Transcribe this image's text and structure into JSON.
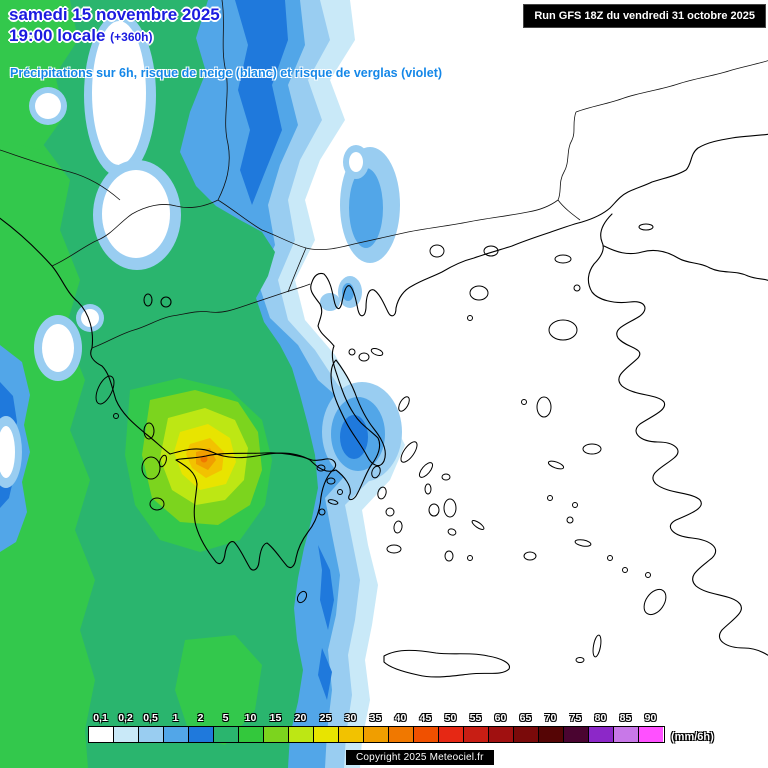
{
  "header": {
    "date": "samedi 15 novembre 2025",
    "time": "19:00 locale",
    "offset": "(+360h)",
    "subtitle": "Précipitations sur 6h, risque de neige (blanc) et risque de verglas (violet)"
  },
  "run_info": {
    "label": "Run GFS 18Z du vendredi 31 octobre 2025"
  },
  "legend": {
    "unit": "(mm/6h)",
    "values": [
      "0,1",
      "0,2",
      "0,5",
      "1",
      "2",
      "5",
      "10",
      "15",
      "20",
      "25",
      "30",
      "35",
      "40",
      "45",
      "50",
      "55",
      "60",
      "65",
      "70",
      "75",
      "80",
      "85",
      "90"
    ],
    "colors": [
      "#FFFFFF",
      "#C9E9F8",
      "#99CDF1",
      "#52A6E8",
      "#1F79DC",
      "#2AB56E",
      "#33C83C",
      "#7CD41E",
      "#BDE714",
      "#E8E400",
      "#F2C200",
      "#F09E00",
      "#F07800",
      "#F05000",
      "#E62814",
      "#C81E14",
      "#A01010",
      "#7A0A0A",
      "#550505",
      "#4A0430",
      "#8C28C8",
      "#C878E8",
      "#FF50FF"
    ]
  },
  "footer": {
    "copyright": "Copyright 2025 Meteociel.fr"
  }
}
